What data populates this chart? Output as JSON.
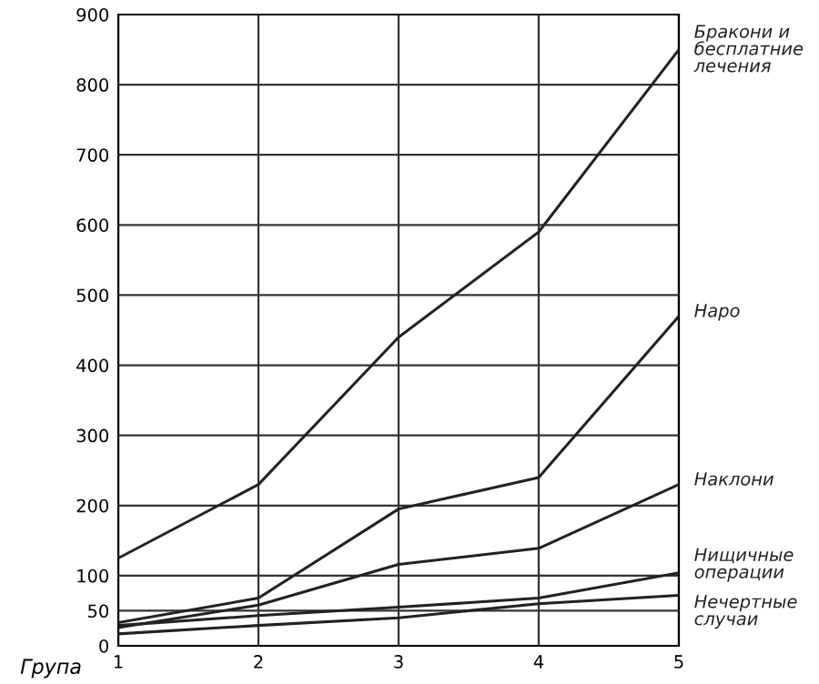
{
  "chart_data": {
    "type": "line",
    "xlabel": "Група",
    "x": [
      1,
      2,
      3,
      4,
      5
    ],
    "series": [
      {
        "name": "Бракони и бесплатние лечения",
        "color": "#222222",
        "values": [
          125,
          230,
          440,
          590,
          850
        ]
      },
      {
        "name": "Наро",
        "color": "#222222",
        "values": [
          33,
          68,
          195,
          240,
          470
        ]
      },
      {
        "name": "Наклони",
        "color": "#222222",
        "values": [
          26,
          58,
          116,
          139,
          230
        ]
      },
      {
        "name": "Нищичные операции",
        "color": "#222222",
        "values": [
          29,
          43,
          55,
          68,
          104
        ]
      },
      {
        "name": "Нечертные случаи",
        "color": "#222222",
        "values": [
          17,
          29,
          40,
          60,
          72
        ]
      }
    ],
    "xlim": [
      1,
      5
    ],
    "xticks": [
      1,
      2,
      3,
      4,
      5
    ],
    "ylim": [
      0,
      900
    ],
    "yticks": [
      0,
      50,
      100,
      200,
      300,
      400,
      500,
      600,
      700,
      800,
      900
    ],
    "grid": true,
    "marker": "none",
    "line_style": "solid",
    "legend": false
  }
}
